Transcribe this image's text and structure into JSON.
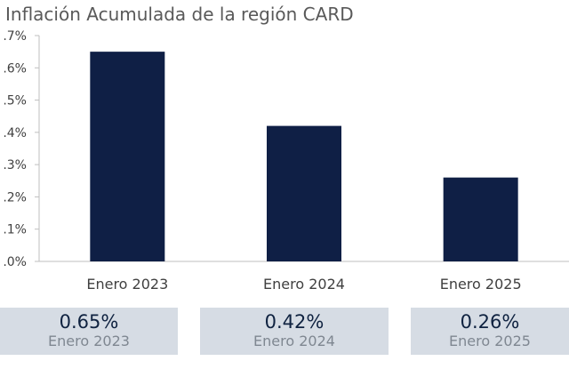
{
  "chart_data": {
    "type": "bar",
    "title": "Inflación Acumulada de la región CARD",
    "categories": [
      "Enero 2023",
      "Enero 2024",
      "Enero 2025"
    ],
    "values": [
      0.65,
      0.42,
      0.26
    ],
    "unit": "%",
    "ylim": [
      0,
      0.7
    ],
    "yticks": [
      ".0%",
      ".1%",
      ".2%",
      ".3%",
      ".4%",
      ".5%",
      ".6%",
      ".7%"
    ],
    "bar_color": "#0f1f45",
    "grid": false
  },
  "cards": [
    {
      "value": "0.65%",
      "label": "Enero 2023"
    },
    {
      "value": "0.42%",
      "label": "Enero 2024"
    },
    {
      "value": "0.26%",
      "label": "Enero 2025"
    }
  ],
  "colors": {
    "card_background": "#d6dce4",
    "card_value": "#0f2240",
    "card_label": "#7f8791"
  }
}
